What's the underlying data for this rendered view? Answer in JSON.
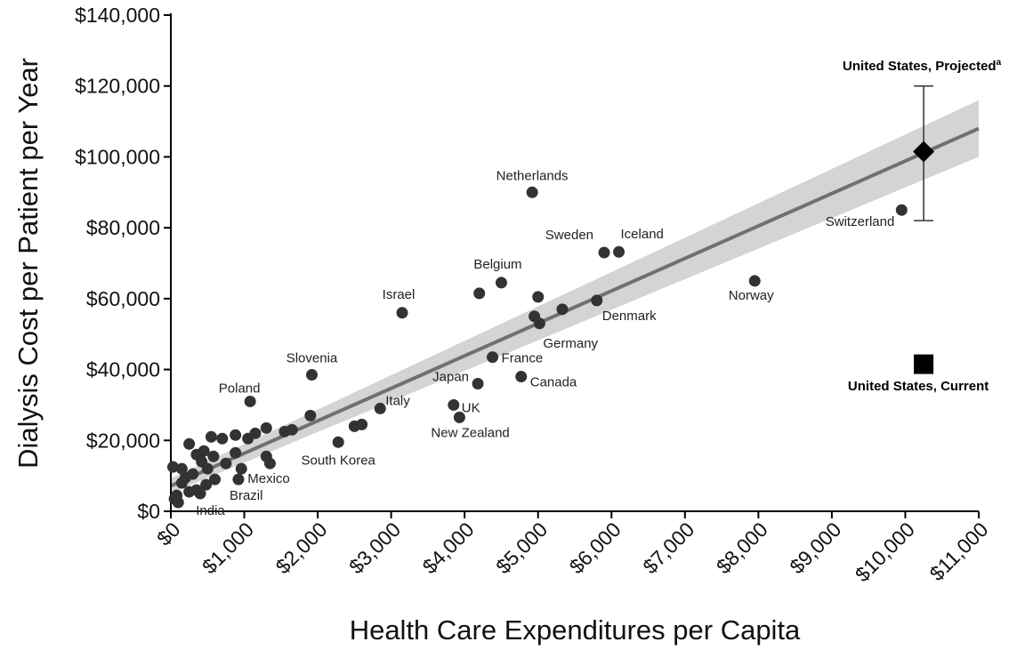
{
  "chart_data": {
    "type": "scatter",
    "title": "",
    "xlabel": "Health Care Expenditures per Capita",
    "ylabel": "Dialysis Cost per Patient per Year",
    "xlim": [
      0,
      11000
    ],
    "ylim": [
      0,
      140000
    ],
    "x_ticks": [
      0,
      1000,
      2000,
      3000,
      4000,
      5000,
      6000,
      7000,
      8000,
      9000,
      10000,
      11000
    ],
    "x_tick_labels": [
      "$0",
      "$1,000",
      "$2,000",
      "$3,000",
      "$4,000",
      "$5,000",
      "$6,000",
      "$7,000",
      "$8,000",
      "$9,000",
      "$10,000",
      "$11,000"
    ],
    "y_ticks": [
      0,
      20000,
      40000,
      60000,
      80000,
      100000,
      120000,
      140000
    ],
    "y_tick_labels": [
      "$0",
      "$20,000",
      "$40,000",
      "$60,000",
      "$80,000",
      "$100,000",
      "$120,000",
      "$140,000"
    ],
    "grid": false,
    "point_color": "#333333",
    "line_color": "#707070",
    "band_color": "#d4d4d4",
    "regression": {
      "line": [
        [
          0,
          7200
        ],
        [
          11000,
          108000
        ]
      ],
      "band_upper": [
        [
          0,
          9300
        ],
        [
          11000,
          116000
        ]
      ],
      "band_lower": [
        [
          0,
          5100
        ],
        [
          11000,
          100000
        ]
      ]
    },
    "labeled_points": [
      {
        "label": "Netherlands",
        "x": 4920,
        "y": 90000
      },
      {
        "label": "Sweden",
        "x": 5900,
        "y": 73000
      },
      {
        "label": "Iceland",
        "x": 6100,
        "y": 73200
      },
      {
        "label": "Switzerland",
        "x": 9950,
        "y": 85000
      },
      {
        "label": "Belgium",
        "x": 4500,
        "y": 64500
      },
      {
        "label": "Israel",
        "x": 3150,
        "y": 56000
      },
      {
        "label": "Norway",
        "x": 7950,
        "y": 65000
      },
      {
        "label": "Denmark",
        "x": 5800,
        "y": 59500
      },
      {
        "label": "Germany",
        "x": 5020,
        "y": 53000
      },
      {
        "label": "France",
        "x": 4380,
        "y": 43500
      },
      {
        "label": "Slovenia",
        "x": 1920,
        "y": 38500
      },
      {
        "label": "Japan",
        "x": 4180,
        "y": 36000
      },
      {
        "label": "Canada",
        "x": 4770,
        "y": 38000
      },
      {
        "label": "Poland",
        "x": 1080,
        "y": 31000
      },
      {
        "label": "Italy",
        "x": 2850,
        "y": 29000
      },
      {
        "label": "UK",
        "x": 3850,
        "y": 30000
      },
      {
        "label": "New Zealand",
        "x": 3930,
        "y": 26500
      },
      {
        "label": "South Korea",
        "x": 2280,
        "y": 19500
      },
      {
        "label": "Mexico",
        "x": 960,
        "y": 12000
      },
      {
        "label": "Brazil",
        "x": 920,
        "y": 9000
      },
      {
        "label": "India",
        "x": 100,
        "y": 2500
      }
    ],
    "unlabeled_points": [
      [
        5000,
        60500
      ],
      [
        4200,
        61500
      ],
      [
        4950,
        55000
      ],
      [
        5330,
        57000
      ],
      [
        1900,
        27000
      ],
      [
        2500,
        24000
      ],
      [
        2600,
        24500
      ],
      [
        1300,
        23500
      ],
      [
        1150,
        22000
      ],
      [
        1050,
        20500
      ],
      [
        880,
        21500
      ],
      [
        700,
        20500
      ],
      [
        550,
        21000
      ],
      [
        250,
        19000
      ],
      [
        350,
        16000
      ],
      [
        450,
        17000
      ],
      [
        580,
        15500
      ],
      [
        750,
        13500
      ],
      [
        1350,
        13500
      ],
      [
        1300,
        15500
      ],
      [
        880,
        16500
      ],
      [
        420,
        14000
      ],
      [
        500,
        12000
      ],
      [
        300,
        10500
      ],
      [
        200,
        9500
      ],
      [
        150,
        8000
      ],
      [
        600,
        9000
      ],
      [
        480,
        7500
      ],
      [
        350,
        6000
      ],
      [
        250,
        5500
      ],
      [
        80,
        4500
      ],
      [
        50,
        3500
      ],
      [
        30,
        12500
      ],
      [
        150,
        12000
      ],
      [
        400,
        5000
      ],
      [
        1550,
        22500
      ],
      [
        1650,
        23000
      ]
    ],
    "us_projected": {
      "label": "United States, Projected",
      "superscript": "a",
      "x": 10250,
      "y": 101500,
      "error_low": 82000,
      "error_high": 120000
    },
    "us_current": {
      "label": "United States, Current",
      "x": 10250,
      "y": 41500
    }
  }
}
